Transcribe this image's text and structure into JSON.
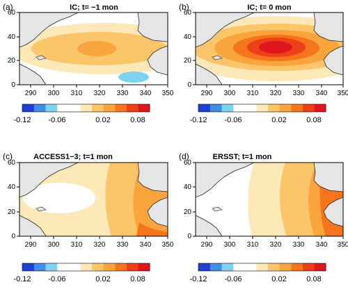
{
  "palette": {
    "blue3": "#1f3fd6",
    "blue2": "#3f8fe6",
    "blue1": "#7fd3ee",
    "zero": "#ffffff",
    "o1": "#fde8b8",
    "o2": "#fcc56a",
    "o3": "#f9a43c",
    "o4": "#f5741c",
    "o5": "#ed3f18",
    "o6": "#e0161c",
    "land": "#e6e6e6",
    "coast": "#222222"
  },
  "colorbar": {
    "bins": [
      "blue3",
      "blue2",
      "blue1",
      "zero",
      "zero",
      "o1",
      "o2",
      "o3",
      "o4",
      "o5",
      "o6"
    ],
    "tick_labels": [
      "-0.12",
      "-0.06",
      "0.02",
      "0.08"
    ]
  },
  "axes": {
    "x_ticks": [
      "290",
      "300",
      "310",
      "320",
      "330",
      "340",
      "350"
    ],
    "y_ticks": [
      "0",
      "20",
      "40",
      "60"
    ]
  },
  "panels": [
    {
      "id": "a",
      "tag": "(a)",
      "title": "IC; t= −1 mon"
    },
    {
      "id": "b",
      "tag": "(b)",
      "title": "IC; t= 0 mon"
    },
    {
      "id": "c",
      "tag": "(c)",
      "title": "ACCESS1−3; t=1 mon"
    },
    {
      "id": "d",
      "tag": "(d)",
      "title": "ERSST; t=1 mon"
    }
  ]
}
